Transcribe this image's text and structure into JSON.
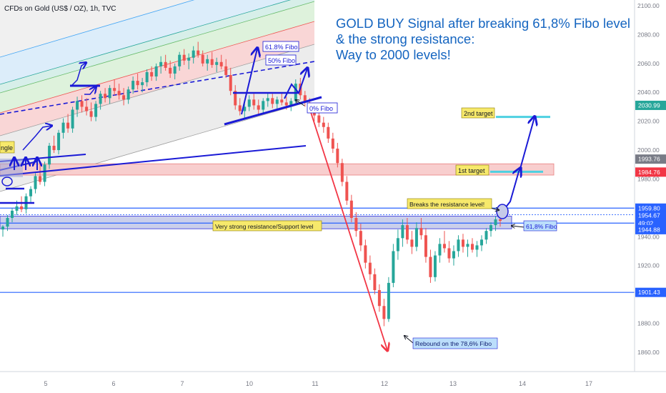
{
  "header": {
    "symbol_text": "CFDs on Gold (US$ / OZ), 1h, TVC"
  },
  "headline": {
    "line1": "GOLD BUY Signal after breaking 61,8% Fibo level",
    "line2": "& the strong resistance:",
    "line3": "Way to 2000 levels!"
  },
  "annotations": {
    "fibo_618_top": "61.8% Fibo",
    "fibo_50": "50% Fibo",
    "fibo_0": "0% Fibo",
    "triangle": "ngle",
    "second_target": "2nd target",
    "first_target": "1st target",
    "breaks_resistance": "Breaks the resistance level!",
    "resistance_support": "Very strong resistance/Support level",
    "fibo_618_right": "61,8% Fibo",
    "rebound": "Rebound on the 78,6% Fibo"
  },
  "colors": {
    "accent_blue": "#1a1ad6",
    "headline_blue": "#1565c0",
    "up_candle": "#26a69a",
    "down_candle": "#ef5350",
    "label_yellow": "#f7e96b",
    "target_cyan": "#4dd0e1",
    "arrow_red": "#f23645"
  },
  "chart_data": {
    "type": "candlestick",
    "title": "CFDs on Gold (US$ / OZ), 1h, TVC",
    "x_tick_labels": [
      "5",
      "6",
      "7",
      "10",
      "11",
      "12",
      "13",
      "14",
      "17"
    ],
    "y_tick_labels": [
      "2100.00",
      "2080.00",
      "2060.00",
      "2040.00",
      "2020.00",
      "2000.00",
      "1980.00",
      "1960.00",
      "1940.00",
      "1920.00",
      "1900.00",
      "1880.00",
      "1860.00"
    ],
    "ylim": [
      1845,
      2103
    ],
    "price_labels": [
      {
        "text": "2030.99",
        "value": 2030.99,
        "color": "#26a69a"
      },
      {
        "text": "1993.76",
        "value": 1993.76,
        "color": "#787b86"
      },
      {
        "text": "1984.76",
        "value": 1984.76,
        "color": "#f23645"
      },
      {
        "text": "1959.80",
        "value": 1959.8,
        "color": "#2962ff"
      },
      {
        "text": "1954.67",
        "value": 1954.67,
        "color": "#2962ff"
      },
      {
        "text": "49:02",
        "value": 1949.4,
        "color": "#2962ff"
      },
      {
        "text": "1944.88",
        "value": 1944.88,
        "color": "#2962ff"
      },
      {
        "text": "1901.43",
        "value": 1901.43,
        "color": "#2962ff"
      }
    ],
    "horizontal_levels": [
      1959.8,
      1955.2,
      1949.4,
      1901.43
    ],
    "resistance_zone": [
      1945.5,
      1954.2
    ],
    "target_zone": [
      1982.7,
      1990.5
    ],
    "targets": [
      {
        "name": "2nd target",
        "value": 2023
      },
      {
        "name": "1st target",
        "value": 1985
      }
    ],
    "candles": [
      [
        1945,
        1948,
        1940,
        1947
      ],
      [
        1947,
        1955,
        1944,
        1953
      ],
      [
        1953,
        1960,
        1950,
        1958
      ],
      [
        1958,
        1965,
        1955,
        1961
      ],
      [
        1961,
        1968,
        1957,
        1959
      ],
      [
        1959,
        1970,
        1956,
        1968
      ],
      [
        1968,
        1975,
        1964,
        1973
      ],
      [
        1973,
        1984,
        1970,
        1982
      ],
      [
        1982,
        1990,
        1976,
        1978
      ],
      [
        1978,
        1992,
        1975,
        1990
      ],
      [
        1990,
        2005,
        1987,
        2003
      ],
      [
        2003,
        2010,
        1998,
        2000
      ],
      [
        2000,
        2014,
        1997,
        2012
      ],
      [
        2012,
        2022,
        2008,
        2019
      ],
      [
        2019,
        2025,
        2012,
        2015
      ],
      [
        2015,
        2030,
        2012,
        2028
      ],
      [
        2028,
        2037,
        2023,
        2034
      ],
      [
        2034,
        2038,
        2026,
        2030
      ],
      [
        2030,
        2036,
        2024,
        2027
      ],
      [
        2027,
        2033,
        2020,
        2023
      ],
      [
        2023,
        2034,
        2020,
        2032
      ],
      [
        2032,
        2041,
        2028,
        2039
      ],
      [
        2039,
        2043,
        2033,
        2036
      ],
      [
        2036,
        2045,
        2032,
        2043
      ],
      [
        2043,
        2049,
        2038,
        2041
      ],
      [
        2041,
        2046,
        2035,
        2038
      ],
      [
        2038,
        2043,
        2031,
        2035
      ],
      [
        2035,
        2044,
        2032,
        2042
      ],
      [
        2042,
        2051,
        2039,
        2048
      ],
      [
        2048,
        2053,
        2042,
        2045
      ],
      [
        2045,
        2050,
        2040,
        2047
      ],
      [
        2047,
        2056,
        2044,
        2054
      ],
      [
        2054,
        2058,
        2048,
        2051
      ],
      [
        2051,
        2060,
        2048,
        2058
      ],
      [
        2058,
        2065,
        2053,
        2061
      ],
      [
        2061,
        2066,
        2055,
        2057
      ],
      [
        2057,
        2062,
        2050,
        2053
      ],
      [
        2053,
        2060,
        2049,
        2058
      ],
      [
        2058,
        2068,
        2055,
        2066
      ],
      [
        2066,
        2070,
        2059,
        2062
      ],
      [
        2062,
        2067,
        2056,
        2064
      ],
      [
        2064,
        2072,
        2060,
        2069
      ],
      [
        2069,
        2075,
        2064,
        2066
      ],
      [
        2066,
        2069,
        2058,
        2060
      ],
      [
        2060,
        2066,
        2055,
        2063
      ],
      [
        2063,
        2068,
        2057,
        2059
      ],
      [
        2059,
        2064,
        2054,
        2061
      ],
      [
        2061,
        2066,
        2056,
        2058
      ],
      [
        2058,
        2063,
        2050,
        2052
      ],
      [
        2052,
        2057,
        2038,
        2041
      ],
      [
        2041,
        2045,
        2028,
        2031
      ],
      [
        2031,
        2036,
        2024,
        2027
      ],
      [
        2027,
        2033,
        2022,
        2030
      ],
      [
        2030,
        2038,
        2027,
        2035
      ],
      [
        2035,
        2039,
        2028,
        2031
      ],
      [
        2031,
        2035,
        2025,
        2028
      ],
      [
        2028,
        2036,
        2026,
        2034
      ],
      [
        2034,
        2040,
        2030,
        2036
      ],
      [
        2036,
        2039,
        2029,
        2032
      ],
      [
        2032,
        2037,
        2028,
        2035
      ],
      [
        2035,
        2040,
        2031,
        2033
      ],
      [
        2033,
        2037,
        2028,
        2031
      ],
      [
        2031,
        2036,
        2027,
        2034
      ],
      [
        2034,
        2049,
        2032,
        2046
      ],
      [
        2046,
        2050,
        2035,
        2038
      ],
      [
        2038,
        2041,
        2030,
        2033
      ],
      [
        2033,
        2036,
        2026,
        2028
      ],
      [
        2028,
        2031,
        2020,
        2024
      ],
      [
        2024,
        2027,
        2016,
        2019
      ],
      [
        2019,
        2023,
        2012,
        2016
      ],
      [
        2016,
        2019,
        2005,
        2008
      ],
      [
        2008,
        2012,
        1998,
        2001
      ],
      [
        2001,
        2005,
        1988,
        1991
      ],
      [
        1991,
        1994,
        1975,
        1978
      ],
      [
        1978,
        1982,
        1962,
        1965
      ],
      [
        1965,
        1969,
        1950,
        1953
      ],
      [
        1953,
        1957,
        1940,
        1944
      ],
      [
        1944,
        1949,
        1930,
        1934
      ],
      [
        1934,
        1938,
        1918,
        1922
      ],
      [
        1922,
        1927,
        1910,
        1914
      ],
      [
        1914,
        1918,
        1900,
        1903
      ],
      [
        1903,
        1907,
        1888,
        1892
      ],
      [
        1892,
        1897,
        1878,
        1883
      ],
      [
        1883,
        1912,
        1881,
        1908
      ],
      [
        1908,
        1935,
        1905,
        1930
      ],
      [
        1930,
        1945,
        1924,
        1939
      ],
      [
        1939,
        1952,
        1933,
        1948
      ],
      [
        1948,
        1953,
        1935,
        1938
      ],
      [
        1938,
        1944,
        1928,
        1933
      ],
      [
        1933,
        1950,
        1930,
        1946
      ],
      [
        1946,
        1953,
        1938,
        1941
      ],
      [
        1941,
        1946,
        1922,
        1926
      ],
      [
        1926,
        1931,
        1908,
        1912
      ],
      [
        1912,
        1930,
        1909,
        1927
      ],
      [
        1927,
        1939,
        1922,
        1935
      ],
      [
        1935,
        1944,
        1929,
        1932
      ],
      [
        1932,
        1937,
        1922,
        1925
      ],
      [
        1925,
        1934,
        1920,
        1930
      ],
      [
        1930,
        1941,
        1926,
        1938
      ],
      [
        1938,
        1942,
        1929,
        1933
      ],
      [
        1933,
        1938,
        1926,
        1935
      ],
      [
        1935,
        1939,
        1929,
        1931
      ],
      [
        1931,
        1937,
        1926,
        1934
      ],
      [
        1934,
        1941,
        1930,
        1938
      ],
      [
        1938,
        1946,
        1935,
        1944
      ],
      [
        1944,
        1950,
        1940,
        1948
      ],
      [
        1948,
        1954,
        1944,
        1952
      ],
      [
        1952,
        1957,
        1947,
        1951
      ]
    ]
  }
}
